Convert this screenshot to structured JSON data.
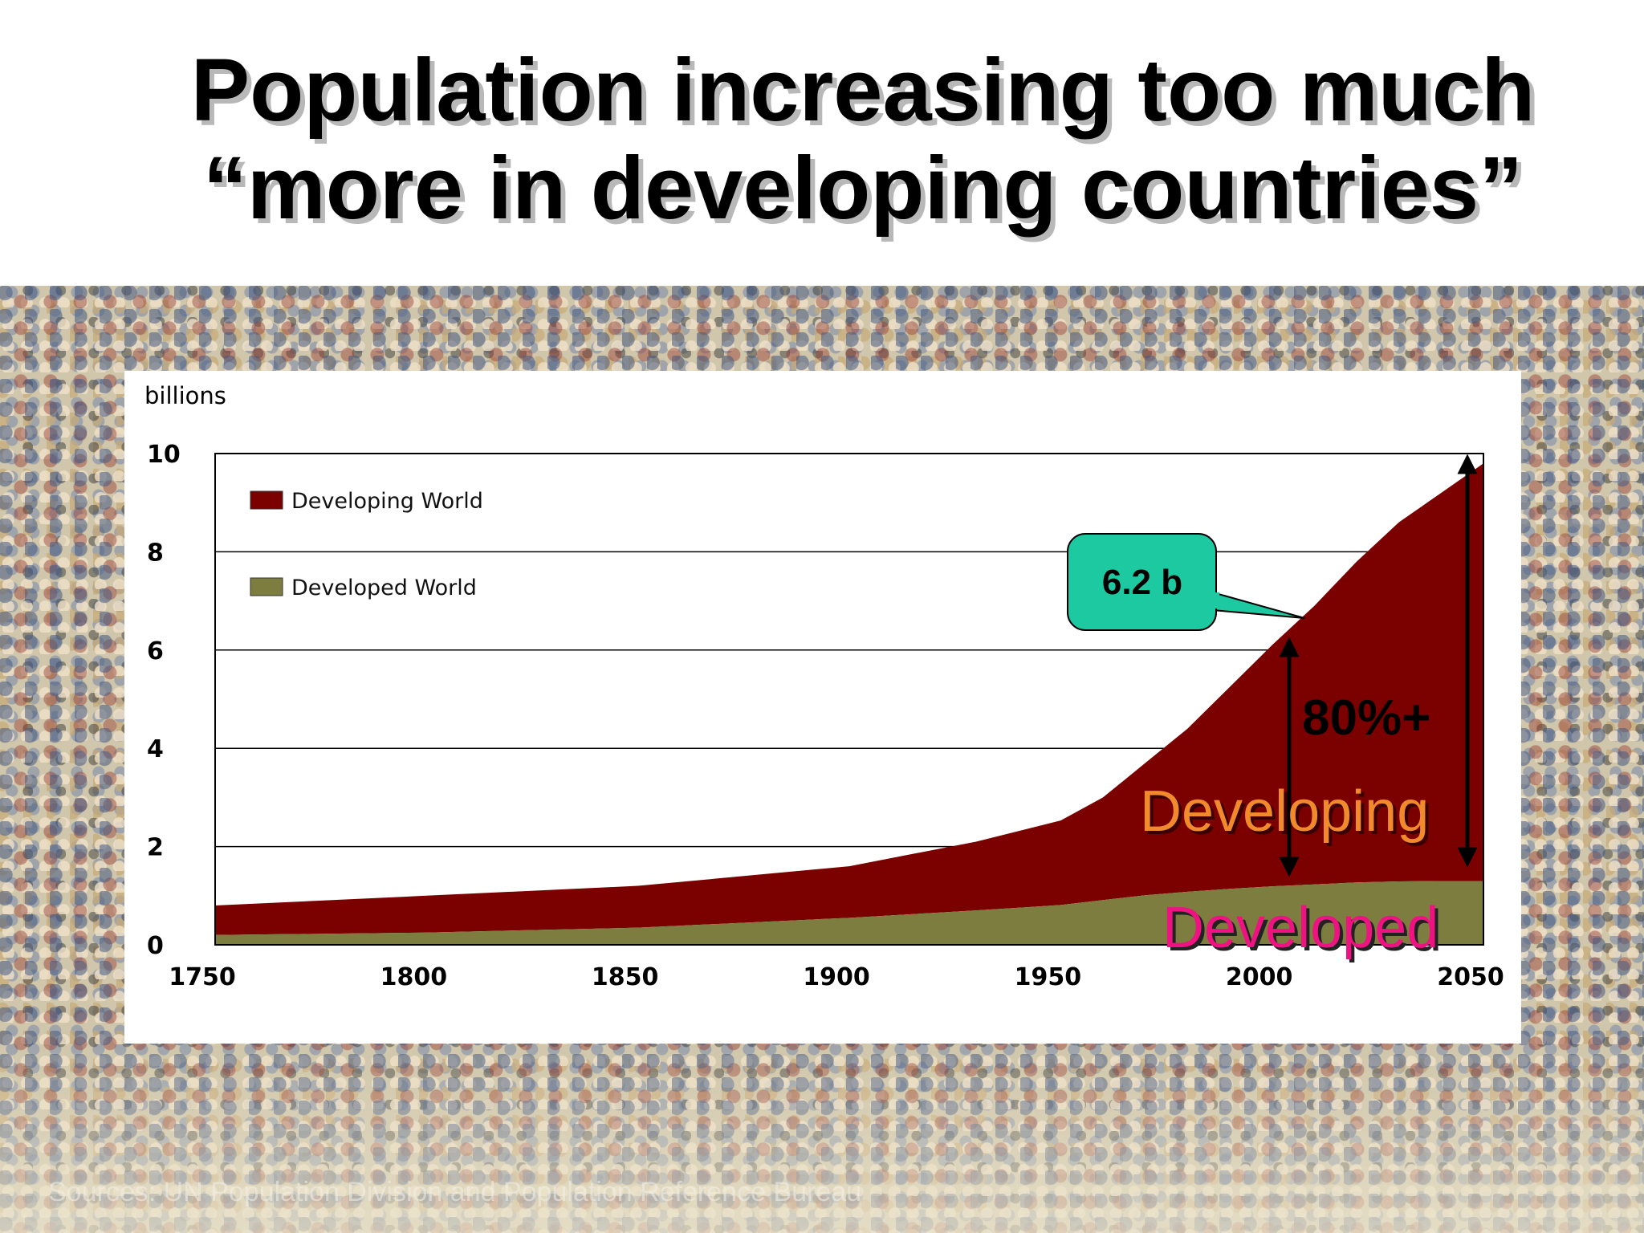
{
  "slide": {
    "title_line1": "Population increasing too much",
    "title_line2": "“more in developing countries”",
    "source_note": "Sources: UN Population Division and Population Reference Bureau"
  },
  "chart_data": {
    "type": "area",
    "stacked": true,
    "ylabel": "billions",
    "xlabel": "",
    "xlim": [
      1750,
      2050
    ],
    "ylim": [
      0,
      10
    ],
    "x_ticks": [
      1750,
      1800,
      1850,
      1900,
      1950,
      2000,
      2050
    ],
    "y_ticks": [
      0,
      2,
      4,
      6,
      8,
      10
    ],
    "grid": "horizontal",
    "legend_position": "top-left",
    "x": [
      1750,
      1800,
      1850,
      1900,
      1930,
      1950,
      1960,
      1970,
      1980,
      1990,
      2000,
      2010,
      2020,
      2030,
      2040,
      2050
    ],
    "series": [
      {
        "name": "Developed World",
        "color": "#7d7d3f",
        "values": [
          0.2,
          0.25,
          0.35,
          0.55,
          0.7,
          0.81,
          0.91,
          1.01,
          1.08,
          1.14,
          1.19,
          1.23,
          1.27,
          1.29,
          1.3,
          1.3
        ]
      },
      {
        "name": "Developing World",
        "color": "#7b0000",
        "values": [
          0.6,
          0.75,
          0.85,
          1.05,
          1.4,
          1.72,
          2.09,
          2.69,
          3.32,
          4.11,
          4.91,
          5.67,
          6.53,
          7.31,
          7.9,
          8.5
        ]
      }
    ],
    "annotations": {
      "callout": "6.2 b",
      "callout_color": "#1dc9a0",
      "share": "80%+",
      "developing_label": "Developing",
      "developing_color": "#f08a2c",
      "developed_label": "Developed",
      "developed_color": "#ee1380"
    }
  }
}
